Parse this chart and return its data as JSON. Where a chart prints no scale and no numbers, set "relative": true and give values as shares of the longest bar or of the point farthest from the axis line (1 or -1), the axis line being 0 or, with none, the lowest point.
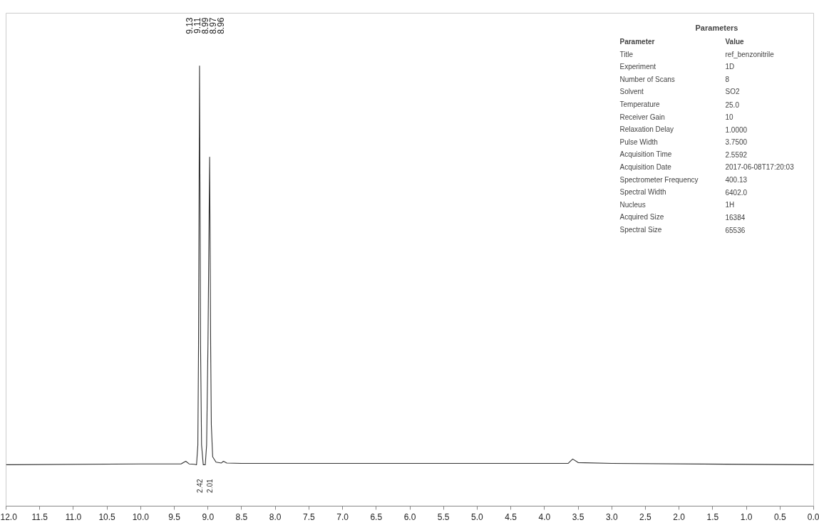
{
  "chart_data": {
    "type": "line",
    "relative": true,
    "grid": false,
    "x": [
      12.0,
      10.0,
      9.4,
      9.33,
      9.28,
      9.2,
      9.17,
      9.15,
      9.14,
      9.125,
      9.11,
      9.095,
      9.07,
      9.04,
      9.02,
      9.0,
      8.975,
      8.96,
      8.95,
      8.93,
      8.88,
      8.8,
      8.77,
      8.72,
      8.5,
      6.0,
      4.0,
      3.65,
      3.58,
      3.5,
      3.0,
      0.0
    ],
    "series": [
      {
        "color": "#333333",
        "values": [
          0.094,
          0.096,
          0.096,
          0.102,
          0.096,
          0.095,
          0.094,
          0.139,
          0.366,
          1.0,
          0.366,
          0.139,
          0.094,
          0.094,
          0.139,
          0.366,
          0.793,
          0.366,
          0.185,
          0.112,
          0.1,
          0.098,
          0.102,
          0.098,
          0.097,
          0.097,
          0.097,
          0.097,
          0.107,
          0.099,
          0.097,
          0.094
        ]
      }
    ],
    "xlim": [
      12.0,
      0.0
    ],
    "xticks": [
      {
        "value": 12.0,
        "label": "12.0"
      },
      {
        "value": 11.5,
        "label": "11.5"
      },
      {
        "value": 11.0,
        "label": "11.0"
      },
      {
        "value": 10.5,
        "label": "10.5"
      },
      {
        "value": 10.0,
        "label": "10.0"
      },
      {
        "value": 9.5,
        "label": "9.5"
      },
      {
        "value": 9.0,
        "label": "9.0"
      },
      {
        "value": 8.5,
        "label": "8.5"
      },
      {
        "value": 8.0,
        "label": "8.0"
      },
      {
        "value": 7.5,
        "label": "7.5"
      },
      {
        "value": 7.0,
        "label": "7.0"
      },
      {
        "value": 6.5,
        "label": "6.5"
      },
      {
        "value": 6.0,
        "label": "6.0"
      },
      {
        "value": 5.5,
        "label": "5.5"
      },
      {
        "value": 5.0,
        "label": "5.0"
      },
      {
        "value": 4.5,
        "label": "4.5"
      },
      {
        "value": 4.0,
        "label": "4.0"
      },
      {
        "value": 3.5,
        "label": "3.5"
      },
      {
        "value": 3.0,
        "label": "3.0"
      },
      {
        "value": 2.5,
        "label": "2.5"
      },
      {
        "value": 2.0,
        "label": "2.0"
      },
      {
        "value": 1.5,
        "label": "1.5"
      },
      {
        "value": 1.0,
        "label": "1.0"
      },
      {
        "value": 0.5,
        "label": "0.5"
      },
      {
        "value": 0.0,
        "label": "0.0"
      }
    ],
    "annotations": [
      "9.13",
      "9.11",
      "8.99",
      "8.97",
      "8.96",
      "2.42",
      "2.01",
      "Parameters",
      "Parameter",
      "Value",
      "Title",
      "ref_benzonitrile",
      "Experiment",
      "1D",
      "Number of Scans",
      "8",
      "Solvent",
      "SO2",
      "Temperature",
      "25.0",
      "Receiver Gain",
      "10",
      "Relaxation Delay",
      "1.0000",
      "Pulse Width",
      "3.7500",
      "Acquisition Time",
      "2.5592",
      "Acquisition Date",
      "2017-06-08T17:20:03",
      "Spectrometer Frequency",
      "400.13",
      "Spectral Width",
      "6402.0",
      "Nucleus",
      "1H",
      "Acquired Size",
      "16384",
      "Spectral Size",
      "65536"
    ]
  }
}
